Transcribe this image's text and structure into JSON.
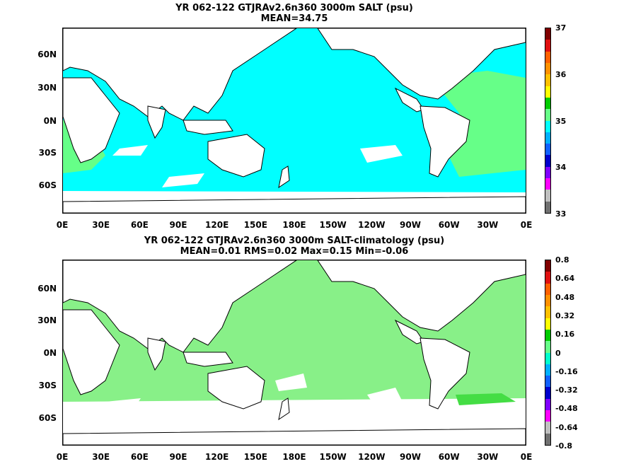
{
  "panel1": {
    "title_line1": "YR 062-122 GTJRAv2.6n360 3000m SALT (psu)",
    "title_line2": "MEAN=34.75",
    "colorbar_labels": [
      "37",
      "36",
      "35",
      "34",
      "33"
    ],
    "colorbar_colors": [
      "#800000",
      "#e01010",
      "#ff6000",
      "#ff9000",
      "#ffc000",
      "#ffff00",
      "#00cc00",
      "#66ff88",
      "#00ffff",
      "#00b0ff",
      "#1060ff",
      "#0000cc",
      "#8000ff",
      "#ff00ff",
      "#c0c0c0",
      "#707070"
    ],
    "ocean_color": "#00ffff",
    "anomaly_color": "#66ff88"
  },
  "panel2": {
    "title_line1": "YR 062-122 GTJRAv2.6n360 3000m SALT-climatology (psu)",
    "title_line2": "MEAN=0.01   RMS=0.02   Max=0.15   Min=-0.06",
    "colorbar_labels": [
      "0.8",
      "0.64",
      "0.48",
      "0.32",
      "0.16",
      "0",
      "-0.16",
      "-0.32",
      "-0.48",
      "-0.64",
      "-0.8"
    ],
    "colorbar_colors": [
      "#800000",
      "#e01010",
      "#ff6000",
      "#ff9000",
      "#ffc000",
      "#ffff00",
      "#00cc00",
      "#66ff88",
      "#00ffcc",
      "#00b0ff",
      "#1060ff",
      "#0000cc",
      "#8000ff",
      "#ff00ff",
      "#c0c0c0",
      "#707070"
    ],
    "ocean_color": "#88f088",
    "anomaly_color": "#44dd44"
  },
  "axes": {
    "lat_labels": [
      "60N",
      "30N",
      "0N",
      "30S",
      "60S"
    ],
    "lon_labels": [
      "0E",
      "30E",
      "60E",
      "90E",
      "120E",
      "150E",
      "180E",
      "150W",
      "120W",
      "90W",
      "60W",
      "30W",
      "0E"
    ]
  }
}
